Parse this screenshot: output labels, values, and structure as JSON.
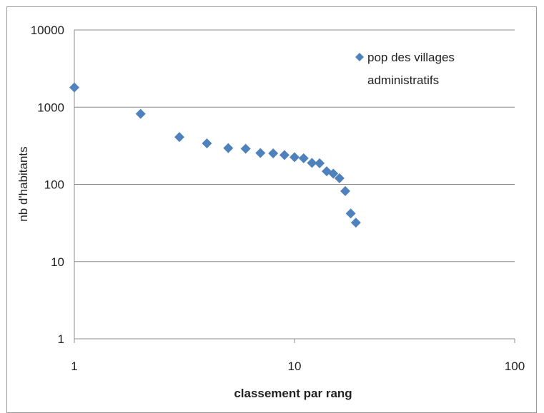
{
  "chart_data": {
    "type": "scatter",
    "title": "",
    "xlabel": "classement par rang",
    "ylabel": "nb d'habitants",
    "x_scale": "log",
    "y_scale": "log",
    "xlim": [
      1,
      100
    ],
    "ylim": [
      1,
      10000
    ],
    "x_ticks": [
      "1",
      "10",
      "100"
    ],
    "y_ticks": [
      "1",
      "10",
      "100",
      "1000",
      "10000"
    ],
    "grid": "horizontal",
    "legend_position": "top-right",
    "marker": "diamond",
    "marker_color": "#4f81bd",
    "series": [
      {
        "name": "pop des villages administratifs",
        "legend_lines": [
          "pop des villages",
          "administratifs"
        ],
        "points": [
          {
            "x": 1,
            "y": 1800
          },
          {
            "x": 2,
            "y": 820
          },
          {
            "x": 3,
            "y": 410
          },
          {
            "x": 4,
            "y": 340
          },
          {
            "x": 5,
            "y": 295
          },
          {
            "x": 6,
            "y": 290
          },
          {
            "x": 7,
            "y": 255
          },
          {
            "x": 8,
            "y": 252
          },
          {
            "x": 9,
            "y": 240
          },
          {
            "x": 10,
            "y": 225
          },
          {
            "x": 11,
            "y": 218
          },
          {
            "x": 12,
            "y": 190
          },
          {
            "x": 13,
            "y": 188
          },
          {
            "x": 14,
            "y": 148
          },
          {
            "x": 15,
            "y": 138
          },
          {
            "x": 16,
            "y": 120
          },
          {
            "x": 17,
            "y": 82
          },
          {
            "x": 18,
            "y": 42
          },
          {
            "x": 19,
            "y": 32
          }
        ]
      }
    ]
  }
}
